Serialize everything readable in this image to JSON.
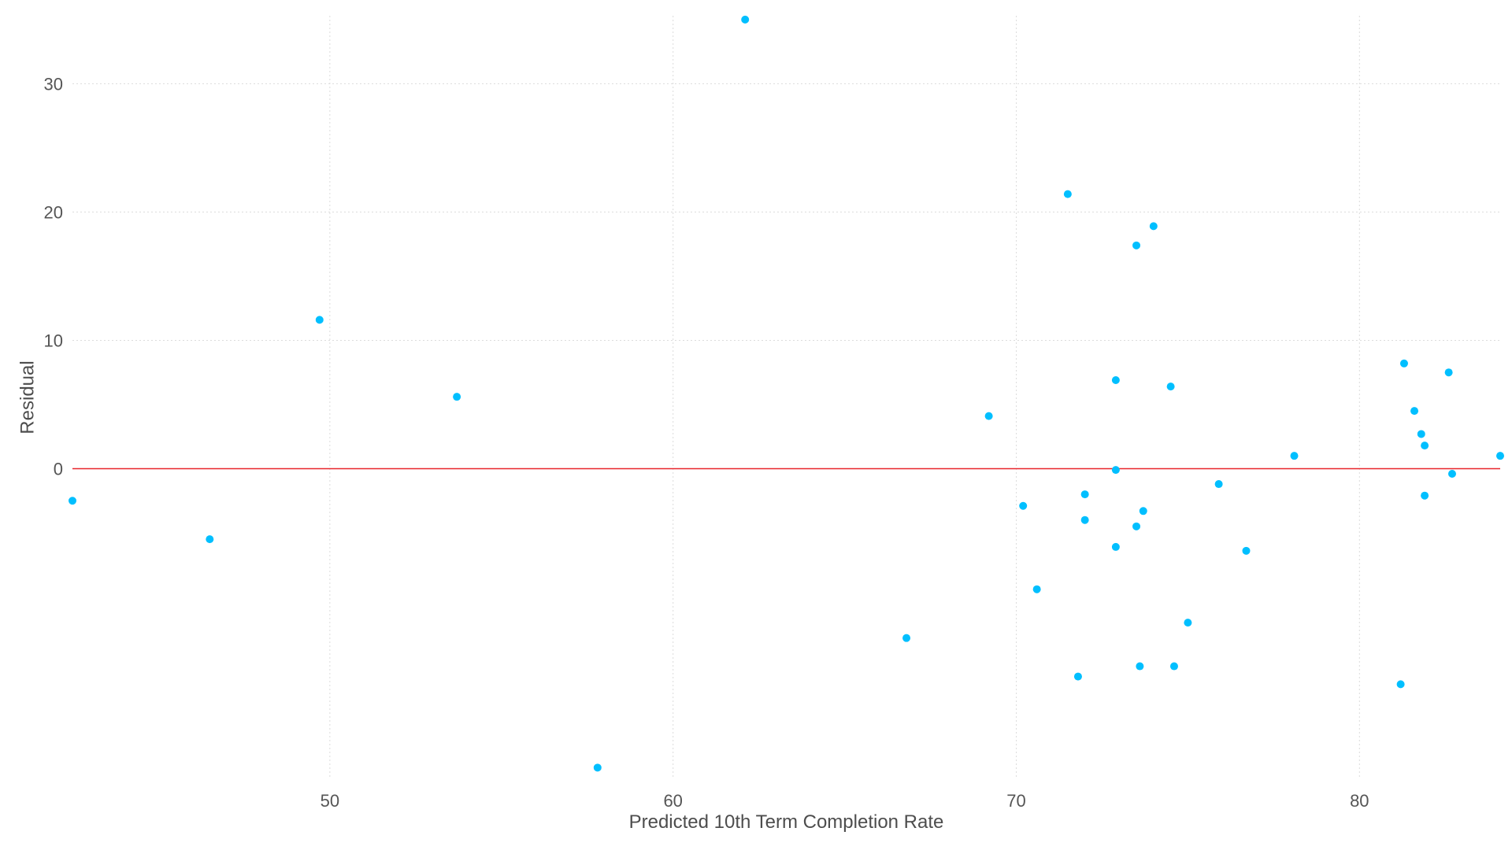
{
  "chart_data": {
    "type": "scatter",
    "xlabel": "Predicted 10th Term Completion Rate",
    "ylabel": "Residual",
    "xlim": [
      42.5,
      84.1
    ],
    "ylim": [
      -24.2,
      35.3
    ],
    "xticks": [
      50,
      60,
      70,
      80
    ],
    "yticks": [
      0,
      10,
      20,
      30
    ],
    "grid": true,
    "reference_line": {
      "y": 0,
      "color": "#e8262b"
    },
    "point_color": "#00bfff",
    "points": [
      {
        "x": 42.5,
        "y": -2.5
      },
      {
        "x": 46.5,
        "y": -5.5
      },
      {
        "x": 49.7,
        "y": 11.6
      },
      {
        "x": 53.7,
        "y": 5.6
      },
      {
        "x": 57.8,
        "y": -23.3
      },
      {
        "x": 62.1,
        "y": 35.0
      },
      {
        "x": 66.8,
        "y": -13.2
      },
      {
        "x": 69.2,
        "y": 4.1
      },
      {
        "x": 70.2,
        "y": -2.9
      },
      {
        "x": 70.6,
        "y": -9.4
      },
      {
        "x": 71.5,
        "y": 21.4
      },
      {
        "x": 71.8,
        "y": -16.2
      },
      {
        "x": 72.0,
        "y": -2.0
      },
      {
        "x": 72.0,
        "y": -4.0
      },
      {
        "x": 72.9,
        "y": 6.9
      },
      {
        "x": 72.9,
        "y": -0.1
      },
      {
        "x": 72.9,
        "y": -6.1
      },
      {
        "x": 73.5,
        "y": 17.4
      },
      {
        "x": 73.5,
        "y": -4.5
      },
      {
        "x": 73.6,
        "y": -15.4
      },
      {
        "x": 73.7,
        "y": -3.3
      },
      {
        "x": 74.0,
        "y": 18.9
      },
      {
        "x": 74.5,
        "y": 6.4
      },
      {
        "x": 74.6,
        "y": -15.4
      },
      {
        "x": 75.0,
        "y": -12.0
      },
      {
        "x": 75.9,
        "y": -1.2
      },
      {
        "x": 76.7,
        "y": -6.4
      },
      {
        "x": 78.1,
        "y": 1.0
      },
      {
        "x": 81.2,
        "y": -16.8
      },
      {
        "x": 81.3,
        "y": 8.2
      },
      {
        "x": 81.6,
        "y": 4.5
      },
      {
        "x": 81.8,
        "y": 2.7
      },
      {
        "x": 81.9,
        "y": 1.8
      },
      {
        "x": 81.9,
        "y": -2.1
      },
      {
        "x": 82.6,
        "y": 7.5
      },
      {
        "x": 82.7,
        "y": -0.4
      },
      {
        "x": 84.1,
        "y": 1.0
      }
    ]
  }
}
